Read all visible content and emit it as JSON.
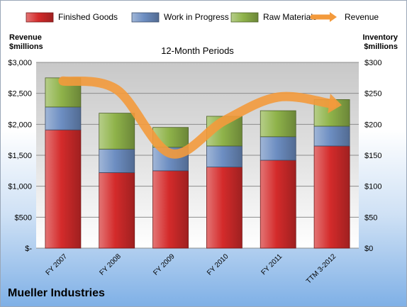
{
  "left_axis_title": [
    "Revenue",
    "$millions"
  ],
  "right_axis_title": [
    "Inventory",
    "$millions"
  ],
  "company": "Mueller Industries",
  "chart_data": {
    "type": "bar",
    "subtype": "stacked bar with line overlay",
    "title": "12-Month Periods",
    "legend_position": "top",
    "grid": true,
    "categories": [
      "FY 2007",
      "FY 2008",
      "FY 2009",
      "FY 2010",
      "FY 2011",
      "TTM 3-2012"
    ],
    "series": [
      {
        "name": "Finished Goods",
        "axis": "right",
        "color": "#d42b2b",
        "values": [
          191,
          122,
          125,
          131,
          142,
          165
        ]
      },
      {
        "name": "Work in Progress",
        "axis": "right",
        "color": "#6d8ec2",
        "values": [
          37,
          38,
          38,
          34,
          38,
          32
        ]
      },
      {
        "name": "Raw Materials",
        "axis": "right",
        "color": "#8fb34a",
        "values": [
          47,
          58,
          32,
          48,
          42,
          43
        ]
      },
      {
        "name": "Revenue",
        "type": "line",
        "axis": "left",
        "color": "#f39a3c",
        "values": [
          2700,
          2560,
          1530,
          2060,
          2440,
          2330
        ]
      }
    ],
    "y_left": {
      "min": 0,
      "max": 3000,
      "step": 500,
      "tick_labels": [
        "$-",
        "$500",
        "$1,000",
        "$1,500",
        "$2,000",
        "$2,500",
        "$3,000"
      ]
    },
    "y_right": {
      "min": 0,
      "max": 300,
      "step": 50,
      "tick_labels": [
        "$0",
        "$50",
        "$100",
        "$150",
        "$200",
        "$250",
        "$300"
      ]
    }
  }
}
